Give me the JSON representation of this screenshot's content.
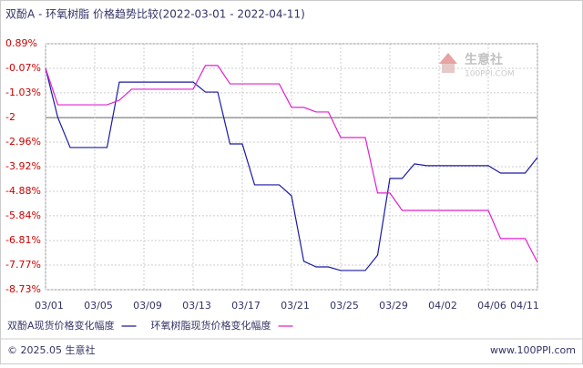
{
  "chart_data": {
    "type": "line",
    "title": "双酚A - 环氧树脂 价格趋势比较(2022-03-01 - 2022-04-11)",
    "categories": [
      "03/01",
      null,
      null,
      null,
      "03/05",
      null,
      null,
      null,
      "03/09",
      null,
      null,
      null,
      "03/13",
      null,
      null,
      null,
      "03/17",
      null,
      null,
      null,
      "03/21",
      null,
      null,
      null,
      "03/25",
      null,
      null,
      null,
      "03/29",
      null,
      null,
      null,
      "04/02",
      null,
      null,
      null,
      "04/06",
      null,
      null,
      null,
      "04/11"
    ],
    "series": [
      {
        "name": "双酚A现货价格变化幅度",
        "color": "#1a1aa6",
        "values": [
          -0.07,
          -2.0,
          -3.17,
          -3.17,
          -3.17,
          -3.17,
          -0.61,
          -0.61,
          -0.61,
          -0.61,
          -0.61,
          -0.61,
          -0.61,
          -1.0,
          -1.0,
          -3.03,
          -3.03,
          -4.63,
          -4.63,
          -4.63,
          -5.06,
          -7.62,
          -7.84,
          -7.84,
          -7.98,
          -7.98,
          -7.98,
          -7.38,
          -4.38,
          -4.38,
          -3.81,
          -3.88,
          -3.88,
          -3.88,
          -3.88,
          -3.88,
          -3.88,
          -4.17,
          -4.17,
          -4.17,
          -3.56
        ]
      },
      {
        "name": "环氧树脂现货价格变化幅度",
        "color": "#e020d0",
        "values": [
          -0.07,
          -1.5,
          -1.5,
          -1.5,
          -1.5,
          -1.5,
          -1.32,
          -0.89,
          -0.89,
          -0.89,
          -0.89,
          -0.89,
          -0.89,
          0.04,
          0.04,
          -0.68,
          -0.68,
          -0.68,
          -0.68,
          -0.68,
          -1.6,
          -1.6,
          -1.78,
          -1.78,
          -2.78,
          -2.78,
          -2.78,
          -4.95,
          -4.95,
          -5.63,
          -5.63,
          -5.63,
          -5.63,
          -5.63,
          -5.63,
          -5.63,
          -5.63,
          -6.73,
          -6.73,
          -6.73,
          -7.66
        ]
      }
    ],
    "ylim": [
      -8.73,
      0.89
    ],
    "yticks": [
      {
        "value": 0.89,
        "label": "0.89%"
      },
      {
        "value": -0.07,
        "label": "-0.07%"
      },
      {
        "value": -1.03,
        "label": "-1.03%"
      },
      -2,
      {
        "value": -2.96,
        "label": "-2.96%"
      },
      {
        "value": -3.92,
        "label": "-3.92%"
      },
      {
        "value": -4.88,
        "label": "-4.88%"
      },
      {
        "value": -5.84,
        "label": "-5.84%"
      },
      {
        "value": -6.81,
        "label": "-6.81%"
      },
      {
        "value": -7.77,
        "label": "-7.77%"
      },
      {
        "value": -8.73,
        "label": "-8.73%"
      }
    ],
    "reference_line": -2,
    "grid": true,
    "watermark": {
      "name": "生意社",
      "site": "100PPI.COM"
    },
    "footer": {
      "copyright": "© 2025.05 生意社",
      "site": "www.100PPI.com"
    }
  }
}
